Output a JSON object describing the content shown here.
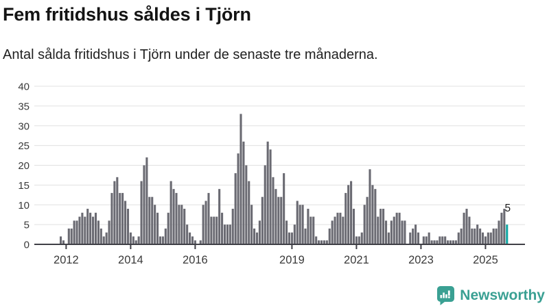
{
  "header": {
    "title": "Fem fritidshus såldes i Tjörn",
    "subtitle": "Antal sålda fritidshus i Tjörn under de senaste tre månaderna."
  },
  "footer": {
    "brand": "Newsworthy",
    "brand_color": "#3aa093",
    "logo_icon": "bar-chart-speech-bubble-icon"
  },
  "chart_data": {
    "type": "bar",
    "title": "Fem fritidshus såldes i Tjörn",
    "subtitle": "Antal sålda fritidshus i Tjörn under de senaste tre månaderna.",
    "frequency": "monthly",
    "x_start_month": "2011-11",
    "x_end_month": "2025-09",
    "values": [
      2,
      1,
      0,
      4,
      4,
      6,
      6,
      7,
      8,
      7,
      9,
      8,
      7,
      8,
      6,
      4,
      2,
      3,
      6,
      13,
      16,
      17,
      13,
      13,
      11,
      9,
      3,
      2,
      1,
      2,
      16,
      20,
      22,
      12,
      12,
      10,
      8,
      2,
      2,
      4,
      8,
      16,
      14,
      13,
      10,
      10,
      9,
      5,
      3,
      2,
      1,
      0,
      1,
      10,
      11,
      13,
      7,
      7,
      7,
      14,
      8,
      5,
      5,
      5,
      9,
      18,
      23,
      33,
      26,
      20,
      16,
      10,
      4,
      3,
      6,
      12,
      20,
      26,
      24,
      17,
      14,
      12,
      12,
      18,
      6,
      3,
      3,
      5,
      11,
      10,
      10,
      4,
      9,
      7,
      7,
      2,
      1,
      1,
      1,
      1,
      4,
      6,
      7,
      8,
      8,
      7,
      13,
      15,
      16,
      9,
      2,
      2,
      3,
      10,
      12,
      19,
      15,
      14,
      7,
      9,
      9,
      6,
      3,
      6,
      7,
      8,
      8,
      6,
      6,
      0,
      3,
      4,
      5,
      3,
      0,
      2,
      2,
      3,
      1,
      1,
      1,
      2,
      2,
      2,
      1,
      1,
      1,
      1,
      3,
      4,
      8,
      9,
      7,
      4,
      4,
      5,
      4,
      3,
      2,
      3,
      3,
      4,
      4,
      6,
      8,
      9,
      5
    ],
    "highlight": {
      "index": 166,
      "month": "2025-09",
      "value": 5,
      "label": "5",
      "color": "#10a7a3"
    },
    "bar_color": "#6a6a72",
    "grid": "horizontal",
    "grid_color": "#e0e0e0",
    "axis_color": "#3f3f46",
    "tick_label_color": "#3a3a3a",
    "ylim": [
      0,
      40
    ],
    "y_ticks": [
      0,
      5,
      10,
      15,
      20,
      25,
      30,
      35,
      40
    ],
    "x_tick_labels": [
      "2012",
      "2014",
      "2016",
      "2019",
      "2021",
      "2023",
      "2025"
    ],
    "x_tick_month_indices": [
      2,
      26,
      50,
      86,
      110,
      134,
      158
    ],
    "xlabel": "",
    "ylabel": ""
  }
}
